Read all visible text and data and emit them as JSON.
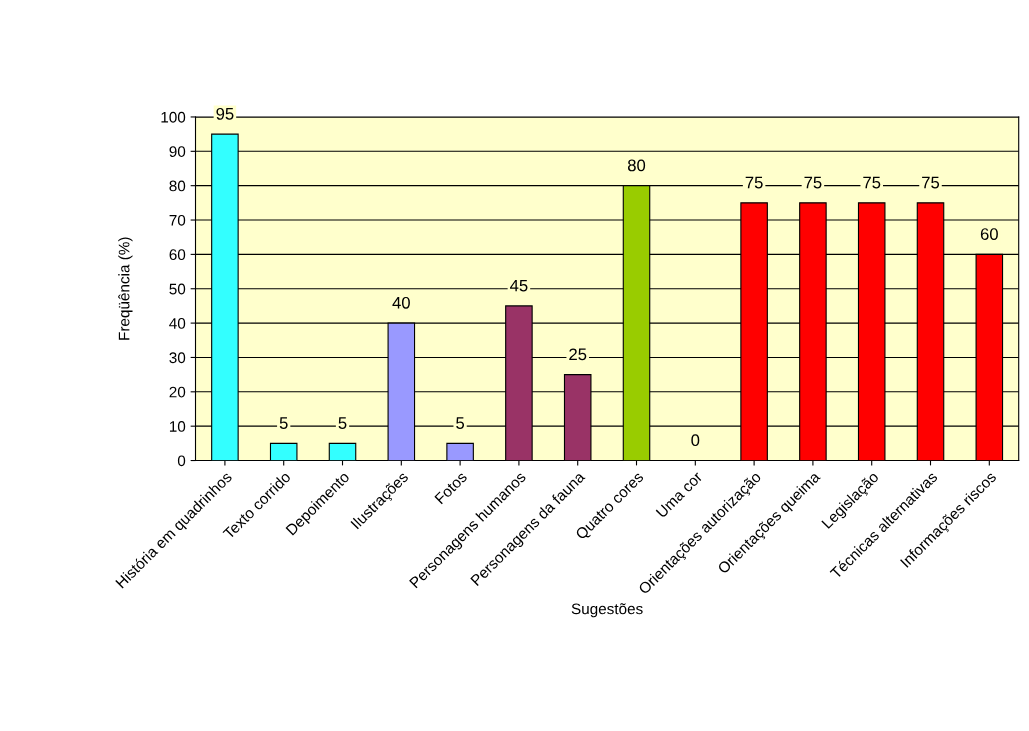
{
  "chart_data": {
    "type": "bar",
    "xlabel": "Sugestões",
    "ylabel": "Freqüência (%)",
    "categories": [
      "História em quadrinhos",
      "Texto corrido",
      "Depoimento",
      "Ilustrações",
      "Fotos",
      "Personagens humanos",
      "Personagens da fauna",
      "Quatro cores",
      "Uma cor",
      "Orientações autorização",
      "Orientações queima",
      "Legislação",
      "Técnicas alternativas",
      "Informações riscos"
    ],
    "values": [
      95,
      5,
      5,
      40,
      5,
      45,
      25,
      80,
      0,
      75,
      75,
      75,
      75,
      60
    ],
    "colors": [
      "#33ffff",
      "#33ffff",
      "#33ffff",
      "#9999ff",
      "#9999ff",
      "#993366",
      "#993366",
      "#99cc00",
      "#99cc00",
      "#ff0000",
      "#ff0000",
      "#ff0000",
      "#ff0000",
      "#ff0000"
    ],
    "ylim": [
      0,
      100
    ],
    "yticks": [
      0,
      10,
      20,
      30,
      40,
      50,
      60,
      70,
      80,
      90,
      100
    ],
    "grid": "y",
    "data_labels": true,
    "legend": false
  }
}
